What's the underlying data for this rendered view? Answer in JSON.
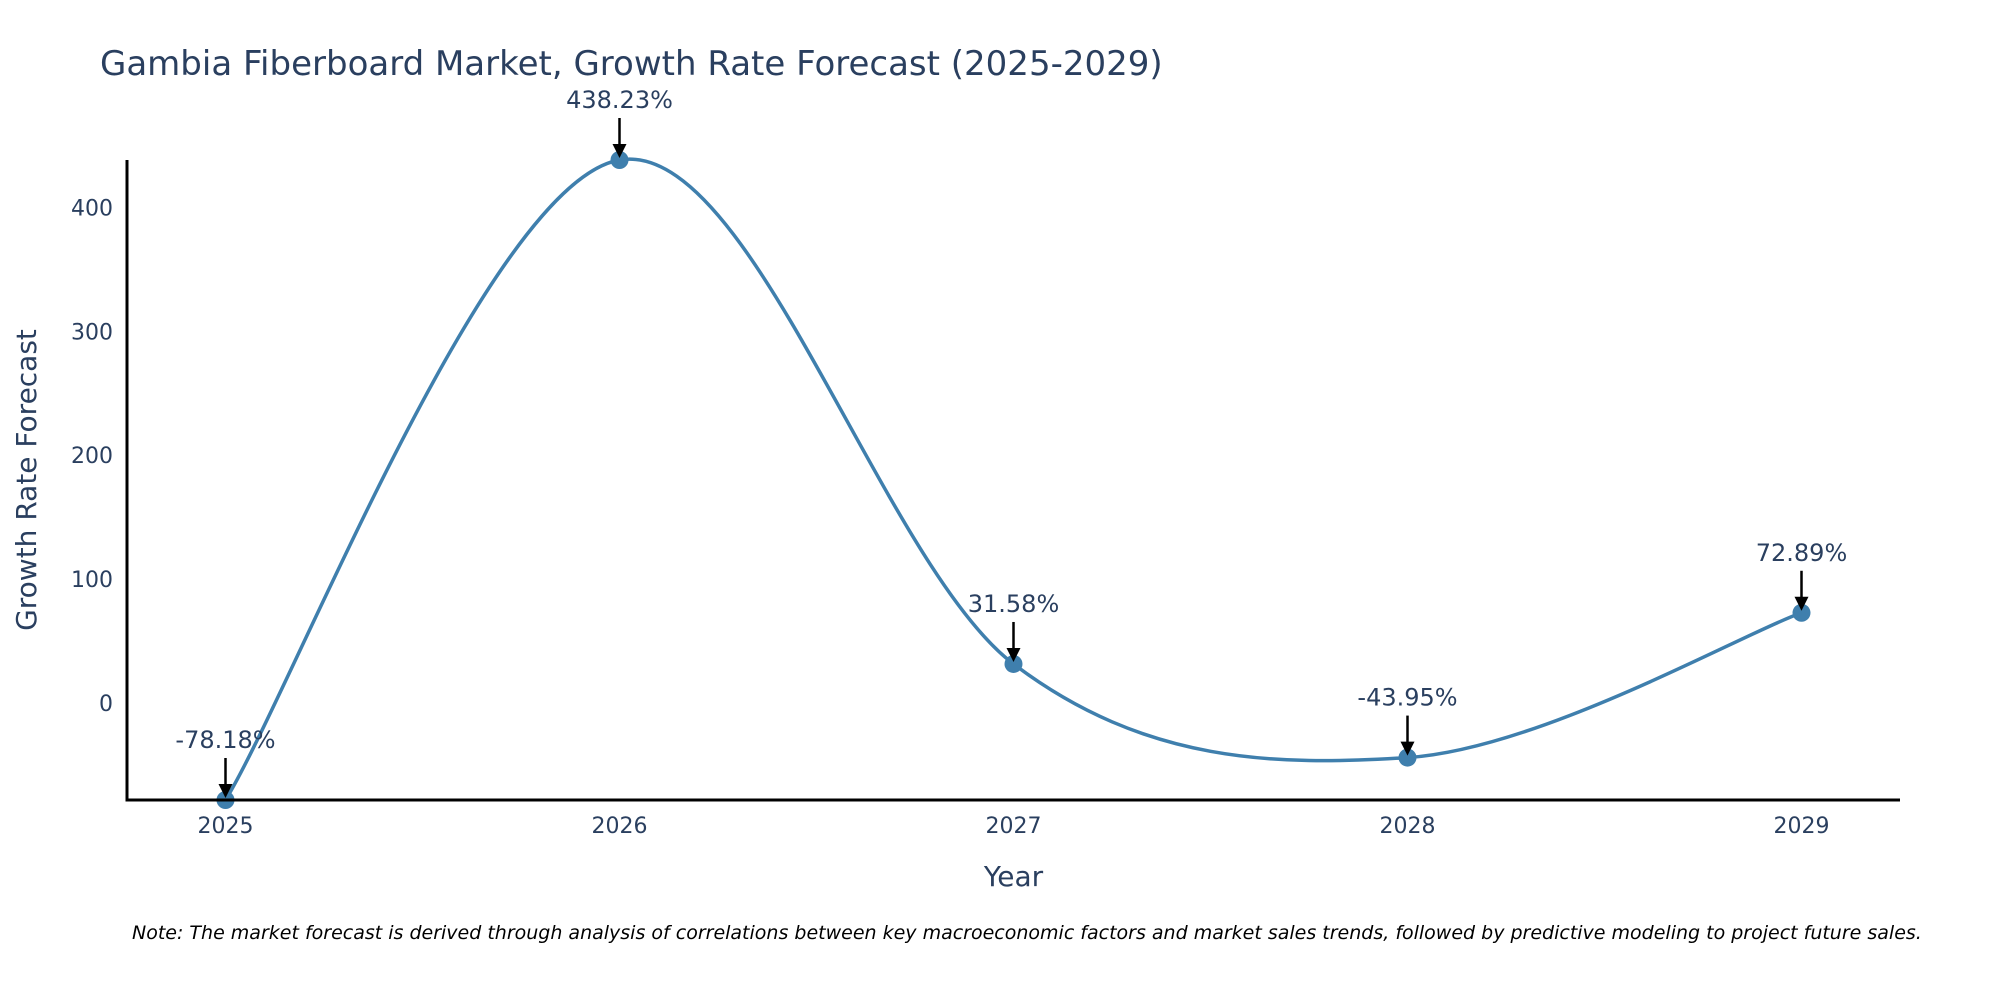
{
  "chart_data": {
    "type": "line",
    "title": "Gambia Fiberboard Market, Growth Rate Forecast (2025-2029)",
    "xlabel": "Year",
    "ylabel": "Growth Rate Forecast",
    "categories": [
      "2025",
      "2026",
      "2027",
      "2028",
      "2029"
    ],
    "series": [
      {
        "name": "Growth Rate Forecast",
        "values": [
          -78.18,
          438.23,
          31.58,
          -43.95,
          72.89
        ]
      }
    ],
    "data_labels": [
      "-78.18%",
      "438.23%",
      "31.58%",
      "-43.95%",
      "72.89%"
    ],
    "y_ticks": [
      0,
      100,
      200,
      300,
      400
    ],
    "ylim": [
      -78.18,
      438.23
    ],
    "xlim": [
      2024.75,
      2029.25
    ],
    "grid": false,
    "line_shape": "spline",
    "line_color": "#3f7fad",
    "note": "Note: The market forecast is derived through analysis of correlations between key macroeconomic factors and market sales trends, followed by predictive modeling to project future sales."
  }
}
